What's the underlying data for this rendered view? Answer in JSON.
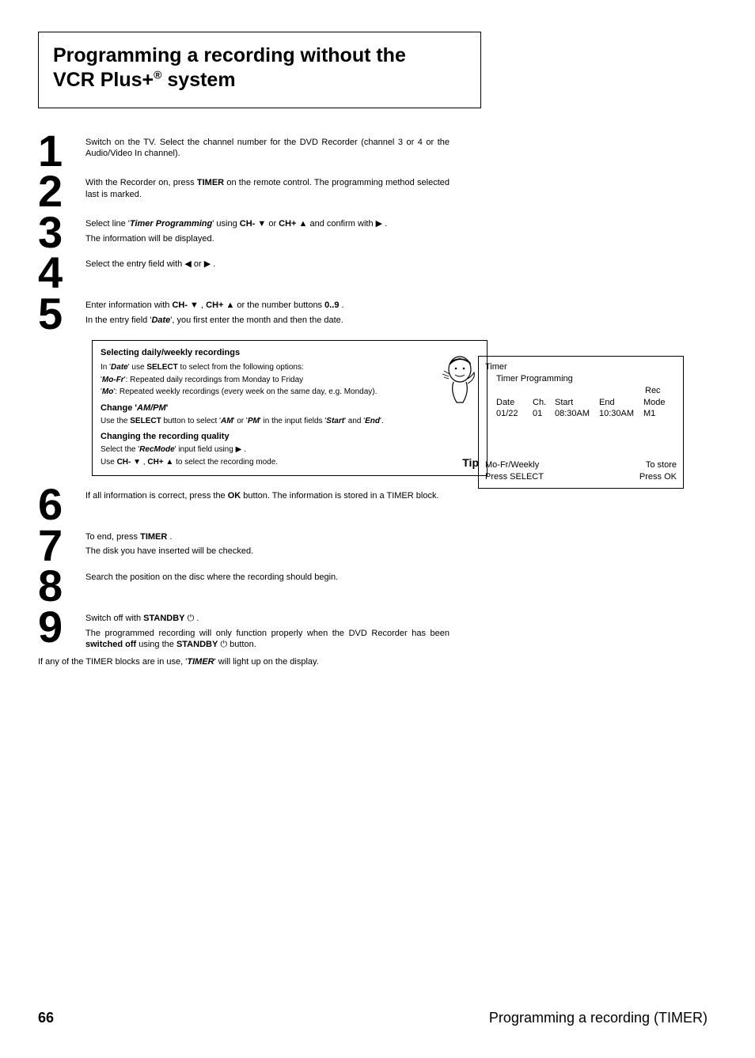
{
  "title": {
    "line1": "Programming a recording without the",
    "line2_pre": "VCR Plus+",
    "line2_sup": "®",
    "line2_post": " system"
  },
  "steps": [
    {
      "num": "1",
      "body": "Switch on the TV. Select the channel number for the DVD Recorder (channel 3 or 4 or the Audio/Video In channel)."
    },
    {
      "num": "2",
      "body": "With the Recorder on, press  <b>TIMER</b> on the remote control. The programming method selected last is marked."
    },
    {
      "num": "3",
      "body": "Select line '<bi>Timer Programming</bi>' using  <b>CH-</b> ▼  or  <b>CH+</b> ▲  and confirm with  ▶ .",
      "sub": "The information will be displayed."
    },
    {
      "num": "4",
      "body": "Select the entry field with  ◀  or  ▶ ."
    },
    {
      "num": "5",
      "body": "Enter information with  <b>CH-</b> ▼ ,  <b>CH+</b> ▲  or the number buttons  <b>0..9</b> .",
      "sub": "In the entry field '<bi>Date</bi>', you first enter the month and then the date."
    }
  ],
  "timer_panel": {
    "title": "Timer",
    "subtitle": "Timer Programming",
    "headers": {
      "date": "Date",
      "ch": "Ch.",
      "start": "Start",
      "end": "End",
      "rec": "Rec",
      "mode": "Mode"
    },
    "row": {
      "date": "01/22",
      "ch": "01",
      "start": "08:30AM",
      "end": "10:30AM",
      "mode": "M1"
    },
    "footer_left1": "Mo-Fr/Weekly",
    "footer_left2": "Press SELECT",
    "footer_right1": "To store",
    "footer_right2": "Press OK"
  },
  "tipbox": {
    "heading": "Selecting daily/weekly recordings",
    "p1": "In '<bi>Date</bi>' use  <b>SELECT</b> to select from the following options:",
    "p2": "'<bi>Mo-Fr</bi>': Repeated daily recordings from Monday to Friday",
    "p3": "'<bi>Mo</bi>': Repeated weekly recordings (every week on the same day, e.g. Monday).",
    "sub1_title": "Change '<bi>AM/PM</bi>'",
    "sub1_body": "Use the  <b>SELECT</b> button to select '<bi>AM</bi>' or '<bi>PM</bi>' in the input fields '<bi>Start</bi>' and '<bi>End</bi>'.",
    "sub2_title": "Changing the recording quality",
    "sub2_body1": "Select the '<bi>RecMode</bi>' input field using  ▶ .",
    "sub2_body2": "Use  <b>CH-</b> ▼ ,  <b>CH+</b> ▲  to select the recording mode.",
    "label": "Tip"
  },
  "steps2": [
    {
      "num": "6",
      "body": "If all information is correct, press the  <b>OK</b> button. The information is stored in a TIMER block."
    },
    {
      "num": "7",
      "body": "To end, press  <b>TIMER</b> .",
      "sub": "The disk you have inserted will be checked."
    },
    {
      "num": "8",
      "body": "Search the position on the disc where the recording should begin."
    },
    {
      "num": "9",
      "body": "Switch off with  <b>STANDBY</b> ⏻ .",
      "sub": "The programmed recording will only function properly when the DVD Recorder has been <b>switched off</b> using the <b>STANDBY</b> ⏻ button."
    }
  ],
  "footer_note": "If any of the TIMER blocks are in use, '<bi>TIMER</bi>' will light up on the display.",
  "page": {
    "num": "66",
    "section": "Programming a recording (TIMER)"
  },
  "colors": {
    "text": "#000000",
    "bg": "#ffffff",
    "border": "#000000"
  }
}
